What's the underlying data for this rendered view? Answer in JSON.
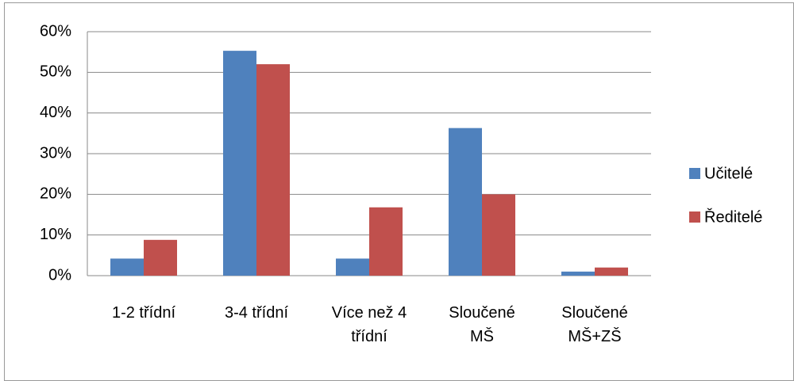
{
  "chart_data": {
    "type": "bar",
    "categories": [
      "1-2 třídní",
      "3-4 třídní",
      "Více než 4\ntřídní",
      "Sloučené\nMŠ",
      "Sloučené\nMŠ+ZŠ"
    ],
    "series": [
      {
        "name": "Učitelé",
        "color": "#4f81bd",
        "values": [
          4.2,
          55.3,
          4.2,
          36.3,
          1.0
        ]
      },
      {
        "name": "Ředitelé",
        "color": "#c0504d",
        "values": [
          8.8,
          52,
          16.8,
          20,
          2.0
        ]
      }
    ],
    "ylim": [
      0,
      60
    ],
    "yticks": [
      {
        "value": 0,
        "label": "0%"
      },
      {
        "value": 10,
        "label": "10%"
      },
      {
        "value": 20,
        "label": "20%"
      },
      {
        "value": 30,
        "label": "30%"
      },
      {
        "value": 40,
        "label": "40%"
      },
      {
        "value": 50,
        "label": "50%"
      },
      {
        "value": 60,
        "label": "60%"
      }
    ],
    "grid": true,
    "legend": "right"
  }
}
